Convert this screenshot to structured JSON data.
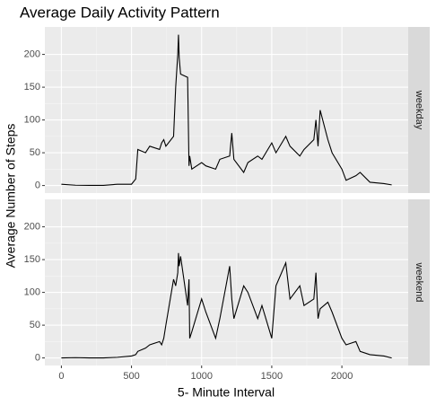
{
  "chart_data": {
    "type": "line",
    "title": "Average Daily Activity Pattern",
    "xlabel": "5- Minute Interval",
    "ylabel": "Average Number of Steps",
    "x": [
      0,
      100,
      200,
      300,
      400,
      500,
      530,
      545,
      600,
      630,
      700,
      715,
      730,
      745,
      800,
      815,
      830,
      835,
      840,
      850,
      900,
      910,
      915,
      930,
      1000,
      1030,
      1100,
      1130,
      1200,
      1215,
      1230,
      1300,
      1330,
      1400,
      1430,
      1500,
      1530,
      1600,
      1630,
      1700,
      1730,
      1800,
      1815,
      1830,
      1845,
      1900,
      1930,
      2000,
      2030,
      2100,
      2130,
      2200,
      2300,
      2355
    ],
    "xlim": [
      -117.75,
      2472.75
    ],
    "xticks": [
      0,
      500,
      1000,
      1500,
      2000
    ],
    "ylim": [
      -11.5,
      241.9
    ],
    "yticks": [
      0,
      50,
      100,
      150,
      200
    ],
    "grid": true,
    "series": [
      {
        "name": "weekday",
        "color": "#000000",
        "values": [
          2,
          0.5,
          0.3,
          0.2,
          2,
          2,
          10,
          55,
          50,
          60,
          55,
          65,
          70,
          60,
          75,
          150,
          200,
          230,
          195,
          170,
          165,
          30,
          45,
          25,
          35,
          30,
          25,
          40,
          45,
          80,
          40,
          20,
          35,
          45,
          40,
          65,
          50,
          75,
          60,
          45,
          55,
          70,
          100,
          60,
          115,
          70,
          50,
          25,
          8,
          15,
          20,
          5,
          3,
          1
        ]
      },
      {
        "name": "weekend",
        "color": "#000000",
        "values": [
          0,
          0.5,
          0,
          0,
          1,
          3,
          5,
          10,
          15,
          20,
          25,
          20,
          30,
          50,
          120,
          110,
          130,
          160,
          140,
          155,
          80,
          120,
          30,
          40,
          90,
          70,
          30,
          60,
          140,
          90,
          60,
          110,
          100,
          60,
          80,
          30,
          110,
          145,
          90,
          110,
          80,
          90,
          130,
          60,
          75,
          85,
          70,
          30,
          20,
          25,
          10,
          5,
          3,
          0
        ]
      }
    ]
  }
}
